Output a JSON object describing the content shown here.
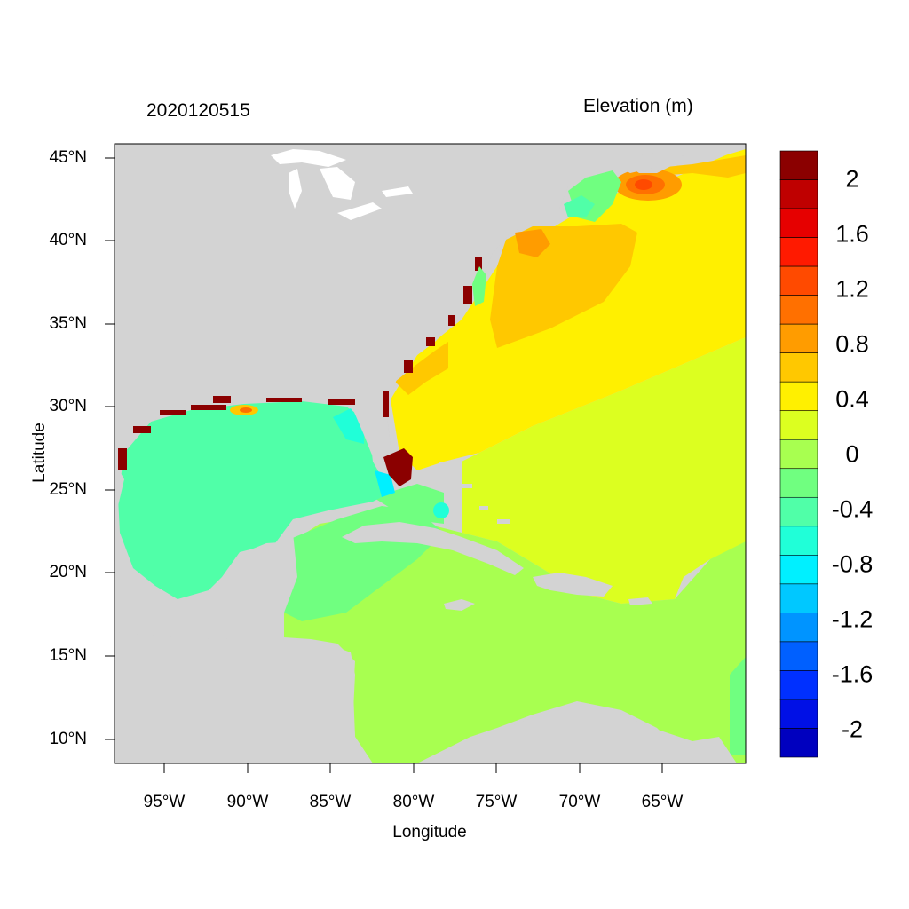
{
  "map": {
    "date_label": "2020120515",
    "variable_label": "Elevation (m)",
    "x_axis_label": "Longitude",
    "y_axis_label": "Latitude",
    "x_ticks": [
      "95°W",
      "90°W",
      "85°W",
      "80°W",
      "75°W",
      "70°W",
      "65°W"
    ],
    "y_ticks": [
      "45°N",
      "40°N",
      "35°N",
      "30°N",
      "25°N",
      "20°N",
      "15°N",
      "10°N"
    ],
    "land_color": "#d3d3d3"
  },
  "colorbar": {
    "labels": [
      "2",
      "1.6",
      "1.2",
      "0.8",
      "0.4",
      "0",
      "-0.4",
      "-0.8",
      "-1.2",
      "-1.6",
      "-2"
    ],
    "colors": [
      "#8b0000",
      "#bf0000",
      "#e60000",
      "#ff1a00",
      "#ff4a00",
      "#ff7000",
      "#ff9c00",
      "#ffc800",
      "#fff000",
      "#dcff20",
      "#a8ff50",
      "#70ff80",
      "#50ffa8",
      "#20ffd8",
      "#00f0ff",
      "#00c8ff",
      "#0094ff",
      "#0060ff",
      "#0030ff",
      "#0010e6",
      "#0000bf"
    ]
  }
}
